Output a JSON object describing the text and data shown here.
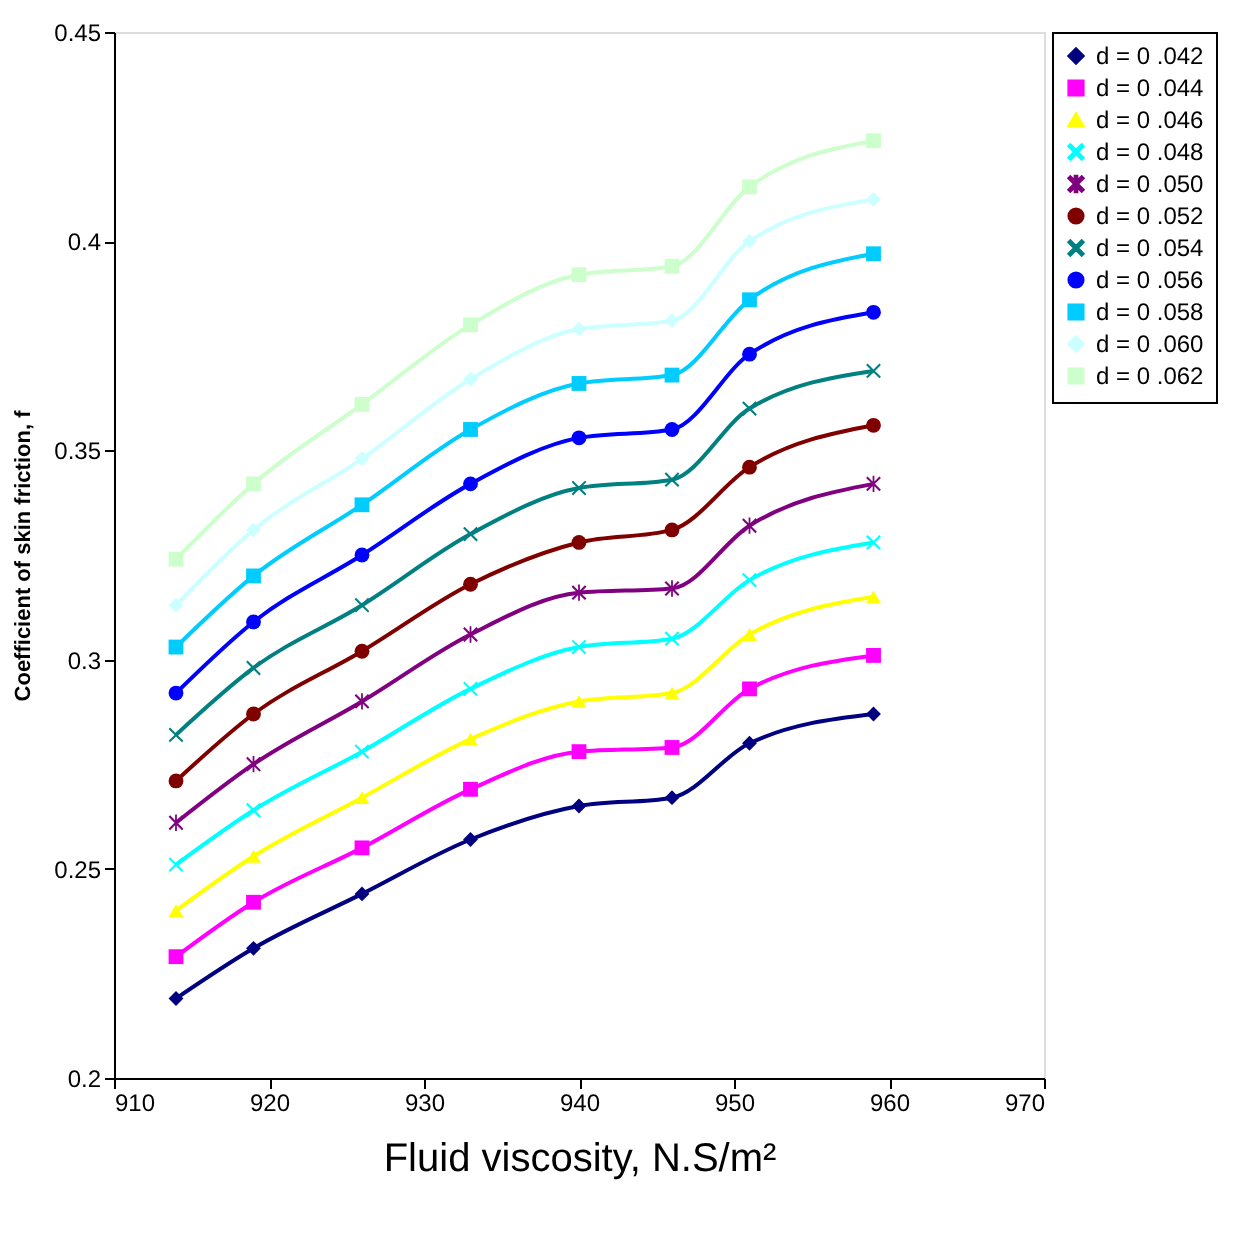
{
  "chart_data": {
    "type": "line",
    "xlabel": "Fluid viscosity, N.S/m²",
    "ylabel": "Coefficient of skin friction, f",
    "x": [
      914,
      919,
      926,
      933,
      940,
      946,
      951,
      959
    ],
    "xlim": [
      910,
      970
    ],
    "xticks": [
      910,
      920,
      930,
      940,
      950,
      960,
      970
    ],
    "ylim": [
      0.2,
      0.45
    ],
    "yticks": [
      0.2,
      0.25,
      0.3,
      0.35,
      0.4,
      0.45
    ],
    "legend": "right",
    "grid": false,
    "series": [
      {
        "name": "d = 0 .042",
        "color": "#000080",
        "marker": "diamond",
        "values": [
          0.219,
          0.231,
          0.244,
          0.257,
          0.265,
          0.267,
          0.28,
          0.287
        ]
      },
      {
        "name": "d = 0 .044",
        "color": "#ff00ff",
        "marker": "square",
        "values": [
          0.229,
          0.242,
          0.255,
          0.269,
          0.278,
          0.279,
          0.293,
          0.301
        ]
      },
      {
        "name": "d = 0 .046",
        "color": "#ffff00",
        "marker": "triangle",
        "values": [
          0.24,
          0.253,
          0.267,
          0.281,
          0.29,
          0.292,
          0.306,
          0.315
        ]
      },
      {
        "name": "d = 0 .048",
        "color": "#00ffff",
        "marker": "cross",
        "values": [
          0.251,
          0.264,
          0.278,
          0.293,
          0.303,
          0.305,
          0.319,
          0.328
        ]
      },
      {
        "name": "d = 0 .050",
        "color": "#800080",
        "marker": "star",
        "values": [
          0.261,
          0.275,
          0.29,
          0.306,
          0.316,
          0.317,
          0.332,
          0.342
        ]
      },
      {
        "name": "d = 0 .052",
        "color": "#800000",
        "marker": "circle",
        "values": [
          0.271,
          0.287,
          0.302,
          0.318,
          0.328,
          0.331,
          0.346,
          0.356
        ]
      },
      {
        "name": "d = 0 .054",
        "color": "#008080",
        "marker": "cross",
        "values": [
          0.282,
          0.298,
          0.313,
          0.33,
          0.341,
          0.343,
          0.36,
          0.369
        ]
      },
      {
        "name": "d = 0 .056",
        "color": "#0000ff",
        "marker": "circle",
        "values": [
          0.292,
          0.309,
          0.325,
          0.342,
          0.353,
          0.355,
          0.373,
          0.383
        ]
      },
      {
        "name": "d = 0 .058",
        "color": "#00ccff",
        "marker": "square",
        "values": [
          0.303,
          0.32,
          0.337,
          0.355,
          0.366,
          0.368,
          0.386,
          0.397
        ]
      },
      {
        "name": "d = 0 .060",
        "color": "#ccffff",
        "marker": "diamond",
        "values": [
          0.313,
          0.331,
          0.348,
          0.367,
          0.379,
          0.381,
          0.4,
          0.41
        ]
      },
      {
        "name": "d = 0 .062",
        "color": "#ccffcc",
        "marker": "square",
        "values": [
          0.324,
          0.342,
          0.361,
          0.38,
          0.392,
          0.394,
          0.413,
          0.424
        ]
      }
    ]
  }
}
